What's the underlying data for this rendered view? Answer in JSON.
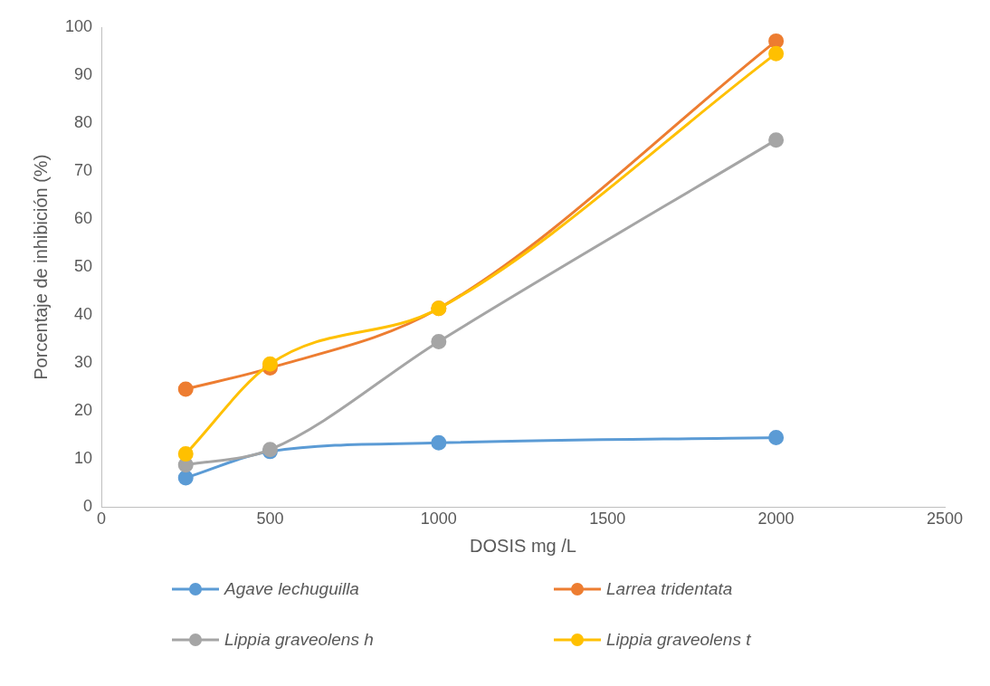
{
  "chart_data": {
    "type": "line",
    "xlabel": "DOSIS mg /L",
    "ylabel": "Porcentaje de inhibición (%)",
    "x": [
      250,
      500,
      1000,
      2000
    ],
    "xlim": [
      0,
      2500
    ],
    "xticks": [
      0,
      500,
      1000,
      1500,
      2000,
      2500
    ],
    "ylim": [
      0,
      100
    ],
    "yticks": [
      0,
      10,
      20,
      30,
      40,
      50,
      60,
      70,
      80,
      90,
      100
    ],
    "grid": false,
    "legend": "bottom",
    "marker": "circle",
    "line_style": "solid",
    "series": [
      {
        "name": "Agave lechuguilla",
        "color": "#5b9bd5",
        "values": [
          6.1,
          11.6,
          13.4,
          14.5
        ]
      },
      {
        "name": "Larrea tridentata",
        "color": "#ed7d31",
        "values": [
          24.6,
          29.0,
          41.4,
          97.1
        ]
      },
      {
        "name": "Lippia graveolens h",
        "color": "#a5a5a5",
        "values": [
          8.8,
          12.0,
          34.5,
          76.5
        ]
      },
      {
        "name": "Lippia graveolens t",
        "color": "#ffc000",
        "values": [
          11.1,
          29.8,
          41.4,
          94.5
        ]
      }
    ]
  }
}
